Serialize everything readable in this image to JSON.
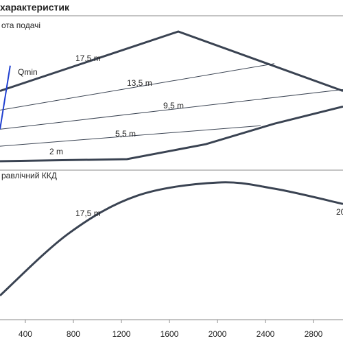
{
  "chart_data": [
    {
      "type": "line",
      "title": "характеристик",
      "panel_title": "ота подачі",
      "xlim": [
        189,
        3046
      ],
      "ylim": [
        0,
        100
      ],
      "series": [
        {
          "name": "17,5 m",
          "color": "#3a4352",
          "width": 3,
          "x": [
            189,
            1674,
            3046
          ],
          "values": [
            51.3,
            89.8,
            51.3
          ]
        },
        {
          "name": "13,5 m",
          "color": "#3a4352",
          "width": 1,
          "x": [
            189,
            2474
          ],
          "values": [
            38.9,
            69.0
          ]
        },
        {
          "name": "9,5 m",
          "color": "#3a4352",
          "width": 1,
          "x": [
            189,
            3046
          ],
          "values": [
            26.5,
            52.2
          ]
        },
        {
          "name": "5,5 m",
          "color": "#3a4352",
          "width": 1,
          "x": [
            189,
            2360
          ],
          "values": [
            15.5,
            28.8
          ]
        },
        {
          "name": "2 m",
          "color": "#3a4352",
          "width": 3,
          "x": [
            189,
            1246,
            1903,
            2474,
            3046
          ],
          "values": [
            5.8,
            7.1,
            16.8,
            30.1,
            41.2
          ]
        },
        {
          "name": "Qmin",
          "color": "#1f3fd0",
          "width": 2,
          "x": [
            189,
            274
          ],
          "values": [
            26.5,
            67.7
          ]
        }
      ]
    },
    {
      "type": "line",
      "panel_title": "равлічний ККД",
      "xlim": [
        189,
        3046
      ],
      "ylim": [
        0,
        100
      ],
      "xticks": [
        400,
        800,
        1200,
        1600,
        2000,
        2400,
        2800
      ],
      "annotations": [
        "20"
      ],
      "series": [
        {
          "name": "17,5 m",
          "color": "#3a4352",
          "width": 3,
          "x": [
            189,
            760,
            1331,
            2000,
            2474,
            3046
          ],
          "values": [
            16.1,
            57.6,
            82.9,
            91.7,
            87.6,
            77.4
          ]
        }
      ]
    }
  ]
}
